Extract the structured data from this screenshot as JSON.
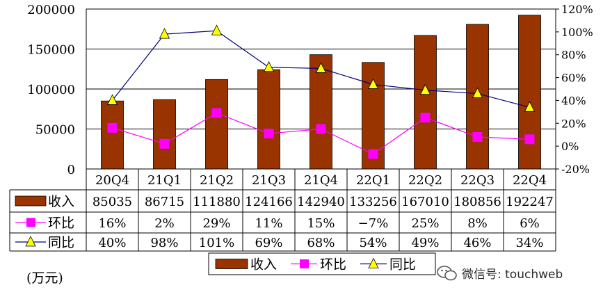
{
  "chart_data": {
    "type": "bar",
    "categories": [
      "20Q4",
      "21Q1",
      "21Q2",
      "21Q3",
      "21Q4",
      "22Q1",
      "22Q2",
      "22Q3",
      "22Q4"
    ],
    "series": [
      {
        "name": "收入",
        "kind": "bar",
        "axis": "left",
        "color": "#993300",
        "values": [
          85035,
          86715,
          111880,
          124166,
          142940,
          133256,
          167010,
          180856,
          192247
        ],
        "labels": [
          "85035",
          "86715",
          "111880",
          "124166",
          "142940",
          "133256",
          "167010",
          "180856",
          "192247"
        ]
      },
      {
        "name": "环比",
        "kind": "line",
        "axis": "right",
        "color": "#ff00ff",
        "marker": "square",
        "values": [
          16,
          2,
          29,
          11,
          15,
          -7,
          25,
          8,
          6
        ],
        "labels": [
          "16%",
          "2%",
          "29%",
          "11%",
          "15%",
          "−7%",
          "25%",
          "8%",
          "6%"
        ]
      },
      {
        "name": "同比",
        "kind": "line",
        "axis": "right",
        "color": "#000080",
        "marker": "triangle",
        "marker_color": "#ffff00",
        "values": [
          40,
          98,
          101,
          69,
          68,
          54,
          49,
          46,
          34
        ],
        "labels": [
          "40%",
          "98%",
          "101%",
          "69%",
          "68%",
          "54%",
          "49%",
          "46%",
          "34%"
        ]
      }
    ],
    "y_left": {
      "range": [
        0,
        200000
      ],
      "ticks": [
        "0",
        "50000",
        "100000",
        "150000",
        "200000"
      ]
    },
    "y_right": {
      "range": [
        -20,
        120
      ],
      "ticks": [
        "-20%",
        "0%",
        "20%",
        "40%",
        "60%",
        "80%",
        "100%",
        "120%"
      ]
    },
    "grid": true,
    "legend_position": "bottom",
    "data_table": true
  },
  "unit_label": "(万元)",
  "watermark": {
    "icon": "wechat-icon",
    "text": "微信号: touchweb"
  }
}
